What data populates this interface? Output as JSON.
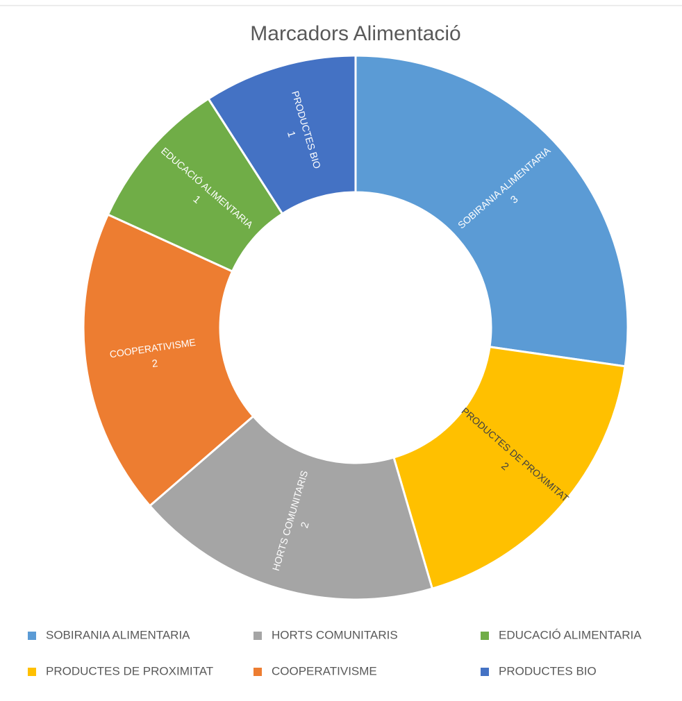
{
  "chart_data": {
    "type": "donut",
    "title": "Marcadors Alimentació",
    "categories": [
      "SOBIRANIA ALIMENTARIA",
      "PRODUCTES DE PROXIMITAT",
      "HORTS COMUNITARIS",
      "COOPERATIVISME",
      "EDUCACIÓ ALIMENTARIA",
      "PRODUCTES BIO"
    ],
    "values": [
      3,
      2,
      2,
      2,
      1,
      1
    ],
    "colors": [
      "#5b9bd5",
      "#ffc000",
      "#a5a5a5",
      "#ed7d31",
      "#70ad47",
      "#4472c4"
    ],
    "legend": "bottom"
  }
}
